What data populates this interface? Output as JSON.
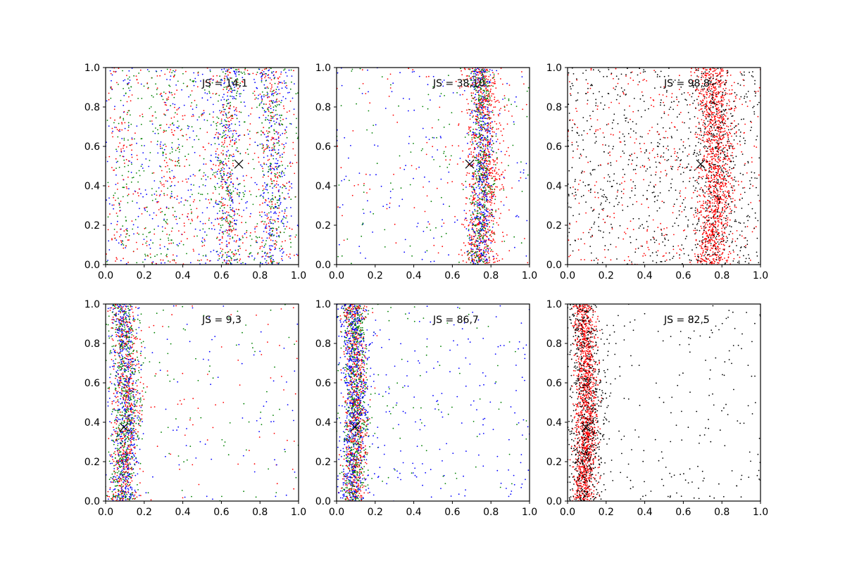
{
  "chart_data": [
    {
      "type": "scatter",
      "annotation": "JS = 14,1",
      "xlim": [
        0,
        1
      ],
      "ylim": [
        0,
        1
      ],
      "xticks": [
        "0.0",
        "0.2",
        "0.4",
        "0.6",
        "0.8",
        "1.0"
      ],
      "yticks": [
        "0.0",
        "0.2",
        "0.4",
        "0.6",
        "0.8",
        "1.0"
      ],
      "marker": {
        "x": 0.69,
        "y": 0.51
      },
      "colors": [
        "#0000ff",
        "#008000",
        "#ff0000"
      ],
      "bands": [
        {
          "center": 0.655,
          "curve": -0.03,
          "width": 0.035,
          "count": 500,
          "colors": [
            "#008000",
            "#0000ff",
            "#ff0000"
          ]
        },
        {
          "center": 0.845,
          "curve": 0.03,
          "width": 0.035,
          "count": 500,
          "colors": [
            "#008000",
            "#ff0000",
            "#0000ff"
          ]
        },
        {
          "center": 0.33,
          "curve": 0.0,
          "width": 0.04,
          "count": 120,
          "colors": [
            "#008000",
            "#ff0000"
          ]
        },
        {
          "center": 0.1,
          "curve": 0.0,
          "width": 0.04,
          "count": 100,
          "colors": [
            "#008000",
            "#ff0000"
          ]
        }
      ],
      "background": {
        "count": 1100,
        "colors": [
          "#0000ff",
          "#008000",
          "#ff0000"
        ]
      }
    },
    {
      "type": "scatter",
      "annotation": "JS = 38,10",
      "xlim": [
        0,
        1
      ],
      "ylim": [
        0,
        1
      ],
      "xticks": [
        "0.0",
        "0.2",
        "0.4",
        "0.6",
        "0.8",
        "1.0"
      ],
      "yticks": [
        "0.0",
        "0.2",
        "0.4",
        "0.6",
        "0.8",
        "1.0"
      ],
      "marker": {
        "x": 0.69,
        "y": 0.51
      },
      "colors": [
        "#0000ff",
        "#008000",
        "#ff0000"
      ],
      "bands": [
        {
          "center": 0.745,
          "curve": 0.025,
          "width": 0.045,
          "count": 900,
          "colors": [
            "#ff0000"
          ]
        },
        {
          "center": 0.735,
          "curve": 0.025,
          "width": 0.03,
          "count": 800,
          "colors": [
            "#008000",
            "#0000ff"
          ]
        }
      ],
      "background": {
        "count": 350,
        "colors": [
          "#0000ff",
          "#ff0000",
          "#008000"
        ]
      }
    },
    {
      "type": "scatter",
      "annotation": "JS = 98,8",
      "xlim": [
        0,
        1
      ],
      "ylim": [
        0,
        1
      ],
      "xticks": [
        "0.0",
        "0.2",
        "0.4",
        "0.6",
        "0.8",
        "1.0"
      ],
      "yticks": [
        "0.0",
        "0.2",
        "0.4",
        "0.6",
        "0.8",
        "1.0"
      ],
      "marker": {
        "x": 0.69,
        "y": 0.51
      },
      "colors": [
        "#000000",
        "#ff0000"
      ],
      "bands": [
        {
          "center": 0.745,
          "curve": 0.025,
          "width": 0.045,
          "count": 1200,
          "colors": [
            "#ff0000"
          ]
        },
        {
          "center": 0.745,
          "curve": 0.025,
          "width": 0.06,
          "count": 350,
          "colors": [
            "#000000"
          ]
        }
      ],
      "background": {
        "count": 1100,
        "colors": [
          "#000000",
          "#000000",
          "#ff0000"
        ]
      }
    },
    {
      "type": "scatter",
      "annotation": "JS = 9,3",
      "xlim": [
        0,
        1
      ],
      "ylim": [
        0,
        1
      ],
      "xticks": [
        "0.0",
        "0.2",
        "0.4",
        "0.6",
        "0.8",
        "1.0"
      ],
      "yticks": [
        "0.0",
        "0.2",
        "0.4",
        "0.6",
        "0.8",
        "1.0"
      ],
      "marker": {
        "x": 0.095,
        "y": 0.375
      },
      "colors": [
        "#0000ff",
        "#008000",
        "#ff0000"
      ],
      "bands": [
        {
          "center": 0.085,
          "curve": 0.025,
          "width": 0.035,
          "count": 1600,
          "colors": [
            "#008000",
            "#0000ff",
            "#ff0000"
          ]
        }
      ],
      "background": {
        "count": 260,
        "colors": [
          "#0000ff",
          "#ff0000",
          "#008000"
        ]
      }
    },
    {
      "type": "scatter",
      "annotation": "JS = 86,7",
      "xlim": [
        0,
        1
      ],
      "ylim": [
        0,
        1
      ],
      "xticks": [
        "0.0",
        "0.2",
        "0.4",
        "0.6",
        "0.8",
        "1.0"
      ],
      "yticks": [
        "0.0",
        "0.2",
        "0.4",
        "0.6",
        "0.8",
        "1.0"
      ],
      "marker": {
        "x": 0.095,
        "y": 0.375
      },
      "colors": [
        "#0000ff",
        "#008000",
        "#ff0000"
      ],
      "bands": [
        {
          "center": 0.085,
          "curve": 0.02,
          "width": 0.03,
          "count": 1300,
          "colors": [
            "#008000",
            "#ff0000"
          ]
        },
        {
          "center": 0.075,
          "curve": 0.02,
          "width": 0.035,
          "count": 600,
          "colors": [
            "#0000ff"
          ]
        }
      ],
      "background": {
        "count": 300,
        "colors": [
          "#0000ff",
          "#0000ff",
          "#008000"
        ]
      }
    },
    {
      "type": "scatter",
      "annotation": "JS = 82,5",
      "xlim": [
        0,
        1
      ],
      "ylim": [
        0,
        1
      ],
      "xticks": [
        "0.0",
        "0.2",
        "0.4",
        "0.6",
        "0.8",
        "1.0"
      ],
      "yticks": [
        "0.0",
        "0.2",
        "0.4",
        "0.6",
        "0.8",
        "1.0"
      ],
      "marker": {
        "x": 0.095,
        "y": 0.375
      },
      "colors": [
        "#000000",
        "#ff0000"
      ],
      "bands": [
        {
          "center": 0.08,
          "curve": 0.02,
          "width": 0.028,
          "count": 1300,
          "colors": [
            "#ff0000"
          ]
        },
        {
          "center": 0.08,
          "curve": 0.02,
          "width": 0.05,
          "count": 700,
          "colors": [
            "#000000"
          ]
        }
      ],
      "background": {
        "count": 220,
        "colors": [
          "#000000"
        ]
      }
    }
  ]
}
